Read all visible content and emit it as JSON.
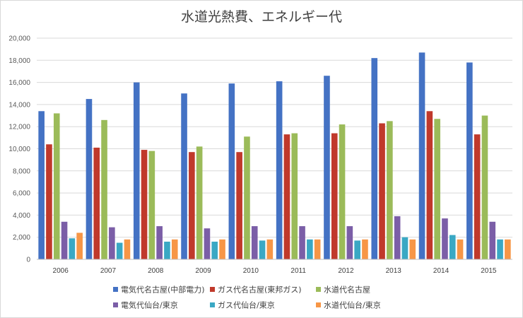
{
  "chart_data": {
    "type": "bar",
    "title": "水道光熱費、エネルギー代",
    "xlabel": "",
    "ylabel": "",
    "ylim": [
      0,
      20000
    ],
    "yticks": [
      "0",
      "2,000",
      "4,000",
      "6,000",
      "8,000",
      "10,000",
      "12,000",
      "14,000",
      "16,000",
      "18,000",
      "20,000"
    ],
    "grid": true,
    "legend": "bottom",
    "categories": [
      "2006",
      "2007",
      "2008",
      "2009",
      "2010",
      "2011",
      "2012",
      "2013",
      "2014",
      "2015"
    ],
    "series": [
      {
        "name": "電気代名古屋(中部電力)",
        "color": "#4472c4",
        "values": [
          13400,
          14500,
          16000,
          15000,
          15900,
          16100,
          16600,
          18200,
          18700,
          17800
        ]
      },
      {
        "name": "ガス代名古屋(東邦ガス)",
        "color": "#c0392b",
        "values": [
          10400,
          10100,
          9900,
          9700,
          9700,
          11300,
          11400,
          12300,
          13400,
          11300
        ]
      },
      {
        "name": "水道代名古屋",
        "color": "#9bbb59",
        "values": [
          13200,
          12600,
          9800,
          10200,
          11100,
          11400,
          12200,
          12500,
          12700,
          13000
        ]
      },
      {
        "name": "電気代仙台/東京",
        "color": "#7b5ea7",
        "values": [
          3400,
          2900,
          3000,
          2800,
          3000,
          3000,
          3000,
          3900,
          3700,
          3400
        ]
      },
      {
        "name": "ガス代仙台/東京",
        "color": "#3aa8c4",
        "values": [
          1900,
          1500,
          1600,
          1600,
          1700,
          1800,
          1700,
          2000,
          2200,
          1800
        ]
      },
      {
        "name": "水道代仙台/東京",
        "color": "#f79646",
        "values": [
          2400,
          1800,
          1800,
          1800,
          1800,
          1800,
          1800,
          1800,
          1800,
          1800
        ]
      }
    ]
  }
}
